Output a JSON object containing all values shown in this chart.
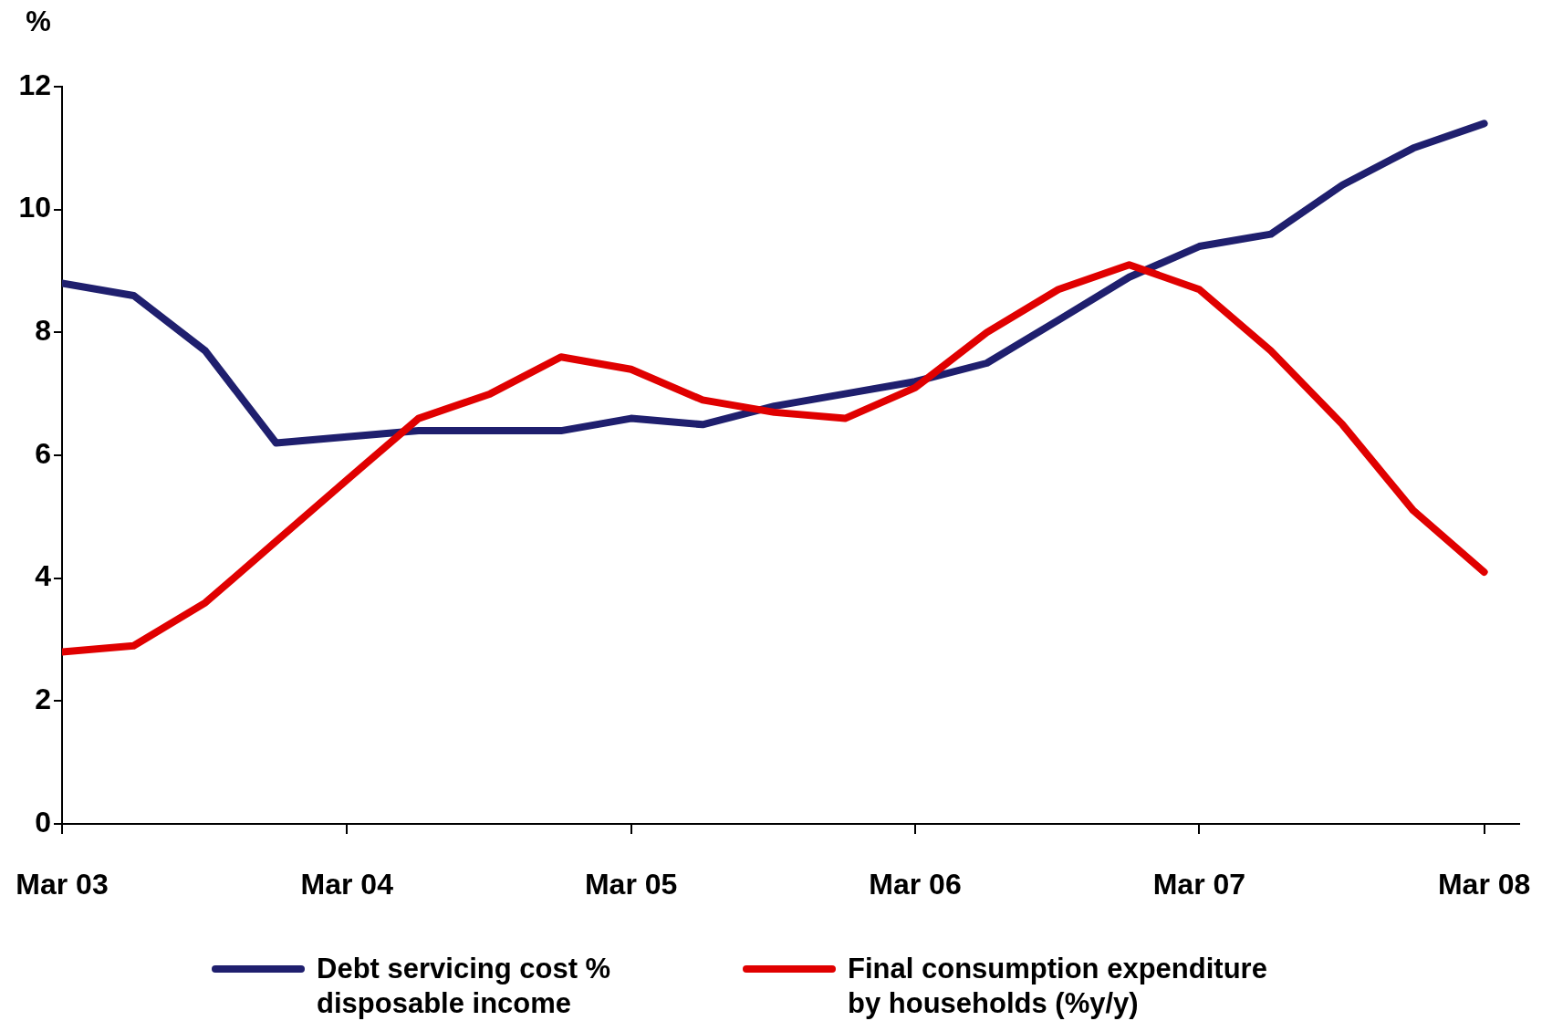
{
  "chart_data": {
    "type": "line",
    "ylabel": "%",
    "x": [
      "2003-03",
      "2003-06",
      "2003-09",
      "2003-12",
      "2004-03",
      "2004-06",
      "2004-09",
      "2004-12",
      "2005-03",
      "2005-06",
      "2005-09",
      "2005-12",
      "2006-03",
      "2006-06",
      "2006-09",
      "2006-12",
      "2007-03",
      "2007-06",
      "2007-09",
      "2007-12",
      "2008-03"
    ],
    "xlim": [
      "2003-03",
      "2008-04-15"
    ],
    "xticks": [
      {
        "value": "2003-03",
        "label": "Mar 03"
      },
      {
        "value": "2004-03",
        "label": "Mar 04"
      },
      {
        "value": "2005-03",
        "label": "Mar 05"
      },
      {
        "value": "2006-03",
        "label": "Mar 06"
      },
      {
        "value": "2007-03",
        "label": "Mar 07"
      },
      {
        "value": "2008-03",
        "label": "Mar 08"
      }
    ],
    "ylim": [
      0,
      12
    ],
    "yticks": [
      0,
      2,
      4,
      6,
      8,
      10,
      12
    ],
    "series": [
      {
        "name": "Debt servicing cost % disposable income",
        "color": "#1f1f6e",
        "values": [
          8.8,
          8.6,
          7.7,
          6.2,
          6.3,
          6.4,
          6.4,
          6.4,
          6.6,
          6.5,
          6.8,
          7.0,
          7.2,
          7.5,
          8.2,
          8.9,
          9.4,
          9.6,
          10.4,
          11.0,
          11.4
        ]
      },
      {
        "name": "Final consumption expenditure by households (%y/y)",
        "color": "#e00000",
        "values": [
          2.8,
          2.9,
          3.6,
          4.6,
          5.6,
          6.6,
          7.0,
          7.6,
          7.4,
          6.9,
          6.7,
          6.6,
          7.1,
          8.0,
          8.7,
          9.1,
          8.7,
          7.7,
          6.5,
          5.1,
          4.1
        ]
      }
    ],
    "legend": "bottom",
    "marker": "none",
    "line_style": "solid"
  }
}
